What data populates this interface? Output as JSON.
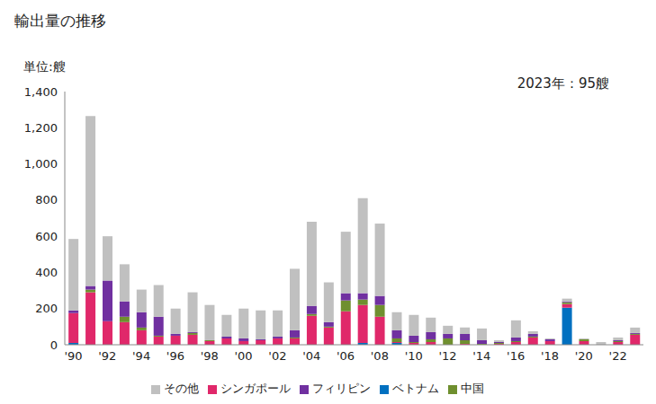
{
  "chart_data": {
    "type": "bar",
    "title": "輸出量の推移",
    "y_label": "単位:艘",
    "annotations": [
      "2023年：95艘"
    ],
    "stacked": true,
    "grid": false,
    "legend": "bottom",
    "categories": [
      "'90",
      null,
      "'92",
      null,
      "'94",
      null,
      "'96",
      null,
      "'98",
      null,
      "'00",
      null,
      "'02",
      null,
      "'04",
      null,
      "'06",
      null,
      "'08",
      null,
      "'10",
      null,
      "'12",
      null,
      "'14",
      null,
      "'16",
      null,
      "'18",
      null,
      "'20",
      null,
      "'22",
      null
    ],
    "ylim": [
      0,
      1400
    ],
    "yticks": [
      0,
      200,
      400,
      600,
      800,
      {
        "value": 1000,
        "label": "1,000"
      },
      {
        "value": 1200,
        "label": "1,200"
      },
      {
        "value": 1400,
        "label": "1,400"
      }
    ],
    "series": [
      {
        "name": "ベトナム",
        "color": "#0070c0",
        "values": [
          10,
          0,
          0,
          0,
          0,
          0,
          0,
          0,
          0,
          0,
          0,
          0,
          0,
          0,
          0,
          0,
          0,
          10,
          0,
          10,
          0,
          0,
          0,
          0,
          0,
          0,
          0,
          0,
          0,
          205,
          0,
          0,
          0,
          0
        ]
      },
      {
        "name": "シンガポール",
        "color": "#e0286a",
        "values": [
          165,
          290,
          130,
          125,
          80,
          45,
          50,
          55,
          20,
          35,
          20,
          25,
          35,
          35,
          160,
          95,
          185,
          210,
          155,
          5,
          10,
          15,
          0,
          5,
          0,
          5,
          15,
          40,
          20,
          20,
          20,
          0,
          15,
          55
        ]
      },
      {
        "name": "中国",
        "color": "#6f8f2f",
        "values": [
          0,
          15,
          0,
          30,
          15,
          5,
          0,
          10,
          5,
          0,
          0,
          0,
          0,
          5,
          10,
          5,
          60,
          30,
          65,
          20,
          5,
          15,
          35,
          20,
          5,
          5,
          5,
          5,
          0,
          10,
          10,
          0,
          5,
          5
        ]
      },
      {
        "name": "フィリピン",
        "color": "#7030a0",
        "values": [
          15,
          20,
          225,
          85,
          85,
          105,
          10,
          5,
          0,
          10,
          15,
          5,
          10,
          40,
          45,
          25,
          40,
          35,
          50,
          45,
          35,
          40,
          25,
          35,
          20,
          5,
          20,
          15,
          10,
          5,
          0,
          0,
          5,
          5
        ]
      },
      {
        "name": "その他",
        "color": "#c0c0c0",
        "values": [
          395,
          940,
          245,
          205,
          125,
          175,
          140,
          220,
          195,
          120,
          165,
          160,
          145,
          340,
          465,
          220,
          340,
          525,
          400,
          100,
          115,
          80,
          45,
          35,
          65,
          10,
          95,
          15,
          5,
          15,
          5,
          15,
          15,
          30
        ]
      }
    ]
  }
}
